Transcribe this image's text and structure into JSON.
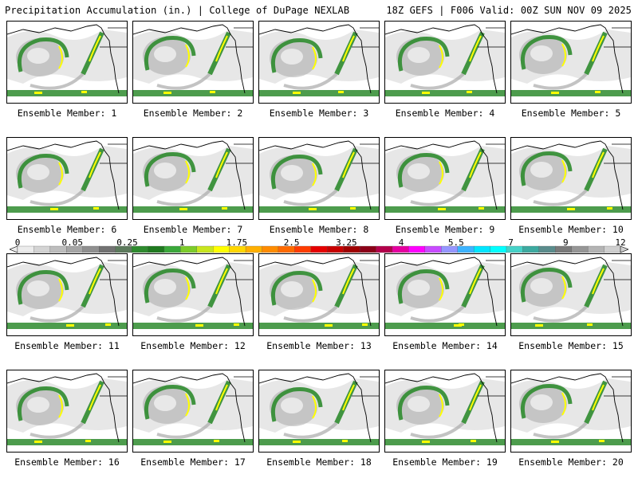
{
  "header": {
    "left": "Precipitation Accumulation (in.) | College of DuPage NEXLAB",
    "right": "18Z GEFS | F006 Valid: 00Z SUN NOV 09 2025"
  },
  "panels": [
    {
      "label": "Ensemble Member: 1"
    },
    {
      "label": "Ensemble Member: 2"
    },
    {
      "label": "Ensemble Member: 3"
    },
    {
      "label": "Ensemble Member: 4"
    },
    {
      "label": "Ensemble Member: 5"
    },
    {
      "label": "Ensemble Member: 6"
    },
    {
      "label": "Ensemble Member: 7"
    },
    {
      "label": "Ensemble Member: 8"
    },
    {
      "label": "Ensemble Member: 9"
    },
    {
      "label": "Ensemble Member: 10"
    },
    {
      "label": "Ensemble Member: 11"
    },
    {
      "label": "Ensemble Member: 12"
    },
    {
      "label": "Ensemble Member: 13"
    },
    {
      "label": "Ensemble Member: 14"
    },
    {
      "label": "Ensemble Member: 15"
    },
    {
      "label": "Ensemble Member: 16"
    },
    {
      "label": "Ensemble Member: 17"
    },
    {
      "label": "Ensemble Member: 18"
    },
    {
      "label": "Ensemble Member: 19"
    },
    {
      "label": "Ensemble Member: 20"
    }
  ],
  "colorbar": {
    "labels": [
      "0",
      "0.05",
      "0.25",
      "1",
      "1.75",
      "2.5",
      "3.25",
      "4",
      "5.5",
      "7",
      "9",
      "12"
    ],
    "colors": [
      "#ececec",
      "#d4d4d4",
      "#bdbdbd",
      "#a6a6a6",
      "#8f8f8f",
      "#727272",
      "#5c7a5c",
      "#2e8b2e",
      "#1f7a1f",
      "#3aa83a",
      "#7ccc2a",
      "#c8e61e",
      "#ffff00",
      "#ffd700",
      "#ffb000",
      "#ff8c00",
      "#ff6a00",
      "#ff3c00",
      "#e60000",
      "#c80000",
      "#a00000",
      "#8c0018",
      "#b4004b",
      "#e600a0",
      "#ff00ff",
      "#c84bff",
      "#9696ff",
      "#3cb4ff",
      "#00e6ff",
      "#00ffff",
      "#46d2c8",
      "#3caaa0",
      "#5a8c8c",
      "#7a7a7a",
      "#969696",
      "#b4b4b4",
      "#cfcfcf"
    ]
  },
  "style": {
    "field_light": "#d3d3d3",
    "field_mid": "#a9a9a9",
    "precip_green": "#2e8b2e",
    "precip_dark": "#1a6a1a",
    "precip_yellow": "#ffff00"
  }
}
